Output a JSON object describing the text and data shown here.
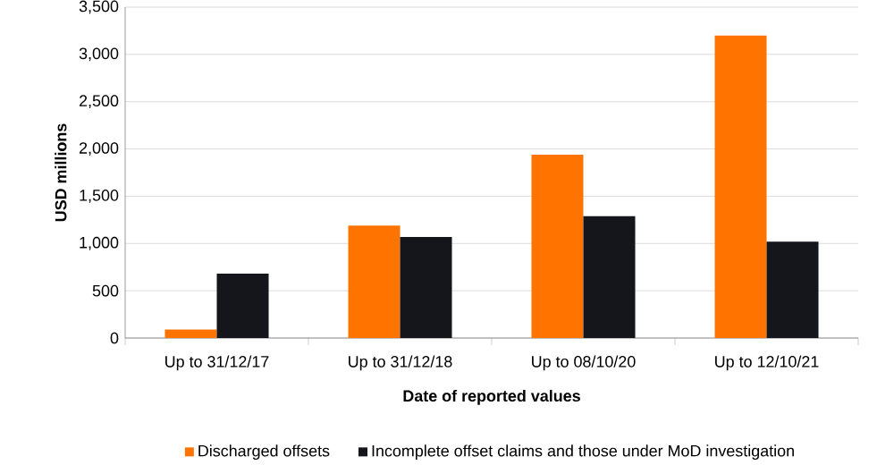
{
  "chart_data": {
    "type": "bar",
    "xlabel": "Date of reported values",
    "ylabel": "USD millions",
    "categories": [
      "Up to 31/12/17",
      "Up to 31/12/18",
      "Up to 08/10/20",
      "Up to 12/10/21"
    ],
    "series": [
      {
        "name": "Discharged offsets",
        "color": "#ff7400",
        "values": [
          90,
          1190,
          1940,
          3200
        ]
      },
      {
        "name": "Incomplete offset claims and those under MoD investigation",
        "color": "#15151c",
        "values": [
          680,
          1070,
          1290,
          1020
        ]
      }
    ],
    "ylim": [
      0,
      3500
    ],
    "yticks": [
      {
        "value": 0,
        "label": "0"
      },
      {
        "value": 500,
        "label": "500"
      },
      {
        "value": 1000,
        "label": "1,000"
      },
      {
        "value": 1500,
        "label": "1,500"
      },
      {
        "value": 2000,
        "label": "2,000"
      },
      {
        "value": 2500,
        "label": "2,500"
      },
      {
        "value": 3000,
        "label": "3,000"
      },
      {
        "value": 3500,
        "label": "3,500"
      }
    ],
    "grid": "y",
    "legend": "bottom"
  }
}
